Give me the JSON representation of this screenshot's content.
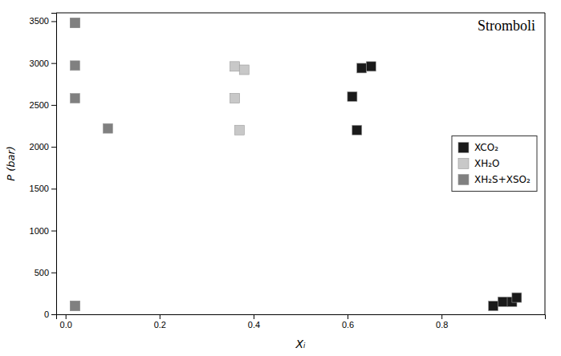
{
  "chart_data": {
    "type": "scatter",
    "title": "Stromboli",
    "xlabel": "Xᵢ",
    "ylabel": "P (bar)",
    "xlim": [
      -0.02,
      1.02
    ],
    "ylim": [
      0,
      3600
    ],
    "xticks": [
      {
        "value": 0.0,
        "label": "0.0"
      },
      0.2,
      0.4,
      0.6,
      0.8
    ],
    "yticks": [
      0,
      500,
      1000,
      1500,
      2000,
      2500,
      3000,
      3500
    ],
    "grid": false,
    "legend": "right",
    "marker": "square",
    "series": [
      {
        "name": "XCO₂",
        "color": "#1a1a1a",
        "x": [
          0.02,
          0.61,
          0.63,
          0.65,
          0.62,
          0.91,
          0.93,
          0.95,
          0.96,
          0.02
        ],
        "values": [
          100,
          2600,
          2940,
          2960,
          2200,
          100,
          150,
          150,
          200,
          3480
        ]
      },
      {
        "name": "XH₂O",
        "color": "#c8c8c8",
        "x": [
          0.02,
          0.36,
          0.38,
          0.36,
          0.37
        ],
        "values": [
          100,
          2960,
          2920,
          2580,
          2200
        ]
      },
      {
        "name": "XH₂S+XSO₂",
        "color": "#808080",
        "x": [
          0.02,
          0.02,
          0.02,
          0.09,
          0.02
        ],
        "values": [
          3480,
          2970,
          2580,
          2220,
          100
        ]
      }
    ]
  }
}
